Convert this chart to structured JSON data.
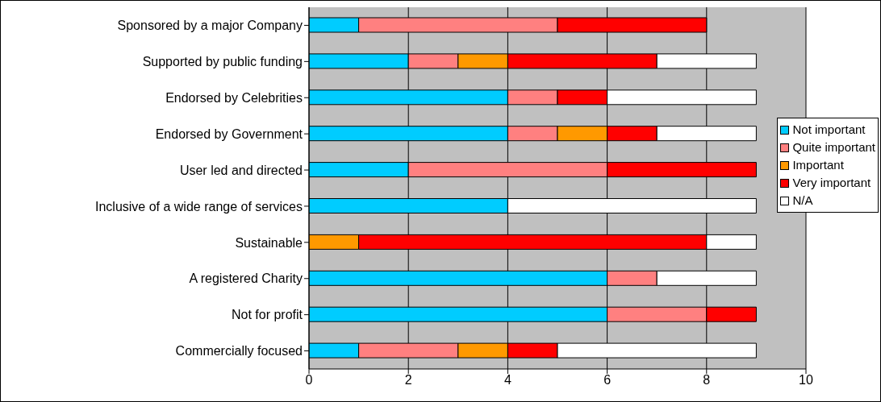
{
  "chart_data": {
    "type": "bar",
    "orientation": "horizontal",
    "stacked": true,
    "categories": [
      "Sponsored by a major Company",
      "Supported by public funding",
      "Endorsed by Celebrities",
      "Endorsed by Government",
      "User led and directed",
      "Inclusive of a wide range of services",
      "Sustainable",
      "A registered Charity",
      "Not for profit",
      "Commercially focused"
    ],
    "series": [
      {
        "name": "Not important",
        "color": "#00ccff",
        "values": [
          1,
          2,
          4,
          4,
          2,
          4,
          0,
          6,
          6,
          1
        ]
      },
      {
        "name": "Quite important",
        "color": "#ff8080",
        "values": [
          4,
          1,
          1,
          1,
          4,
          0,
          0,
          1,
          2,
          2
        ]
      },
      {
        "name": "Important",
        "color": "#ff9900",
        "values": [
          0,
          1,
          0,
          1,
          0,
          0,
          1,
          0,
          0,
          1
        ]
      },
      {
        "name": "Very important",
        "color": "#ff0000",
        "values": [
          3,
          3,
          1,
          1,
          3,
          0,
          7,
          0,
          1,
          1
        ]
      },
      {
        "name": "N/A",
        "color": "#ffffff",
        "values": [
          0,
          2,
          3,
          2,
          0,
          5,
          1,
          2,
          0,
          4
        ]
      }
    ],
    "xlim": [
      0,
      10
    ],
    "xticks": [
      0,
      2,
      4,
      6,
      8,
      10
    ],
    "grid": "x",
    "legend": "right"
  }
}
